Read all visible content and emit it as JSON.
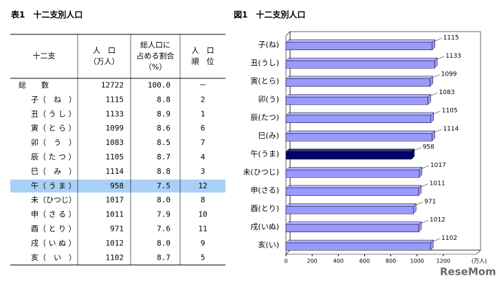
{
  "table": {
    "title": "表1　十二支別人口",
    "header": [
      [
        "十二支"
      ],
      [
        "人　口",
        "（万人）"
      ],
      [
        "総人口に",
        "占める割合",
        "（%）"
      ],
      [
        "人　口",
        "順　位"
      ]
    ],
    "rows": [
      [
        "総　　数",
        "12722",
        "100.0",
        "－"
      ],
      [
        "子（　ね　）",
        "1115",
        "8.8",
        "2"
      ],
      [
        "丑（ う し ）",
        "1133",
        "8.9",
        "1"
      ],
      [
        "寅（ と ら ）",
        "1099",
        "8.6",
        "6"
      ],
      [
        "卯（　う　）",
        "1083",
        "8.5",
        "7"
      ],
      [
        "辰（ た つ ）",
        "1105",
        "8.7",
        "4"
      ],
      [
        "巳（　み　）",
        "1114",
        "8.8",
        "3"
      ],
      [
        "午（ う ま ）",
        "958",
        "7.5",
        "12"
      ],
      [
        "未（ひつじ）",
        "1017",
        "8.0",
        "8"
      ],
      [
        "申（ さ る ）",
        "1011",
        "7.9",
        "10"
      ],
      [
        "酉（ と り ）",
        "971",
        "7.6",
        "11"
      ],
      [
        "戌（ い ぬ ）",
        "1012",
        "8.0",
        "9"
      ],
      [
        "亥（　い　）",
        "1102",
        "8.7",
        "5"
      ]
    ],
    "highlight_row": 7,
    "highlight_color": "#a9d0f5"
  },
  "chart_data": {
    "type": "hbar",
    "title": "図1　十二支別人口",
    "x_label": "(万人)",
    "categories": [
      "子(ね)",
      "丑(うし)",
      "寅(とら)",
      "卯(う)",
      "辰(たつ)",
      "巳(み)",
      "午(うま)",
      "未(ひつじ)",
      "申(さる)",
      "酉(とり)",
      "戌(いぬ)",
      "亥(い)"
    ],
    "values": [
      1115,
      1133,
      1099,
      1083,
      1105,
      1114,
      958,
      1017,
      1011,
      971,
      1012,
      1102
    ],
    "colors": [
      "#9999ff",
      "#9999ff",
      "#9999ff",
      "#9999ff",
      "#9999ff",
      "#9999ff",
      "#000066",
      "#9999ff",
      "#9999ff",
      "#9999ff",
      "#9999ff",
      "#9999ff"
    ],
    "xlim": [
      0,
      1400
    ],
    "xticks": [
      0,
      200,
      400,
      600,
      800,
      1000,
      1200
    ]
  },
  "watermark": "ReseMom"
}
